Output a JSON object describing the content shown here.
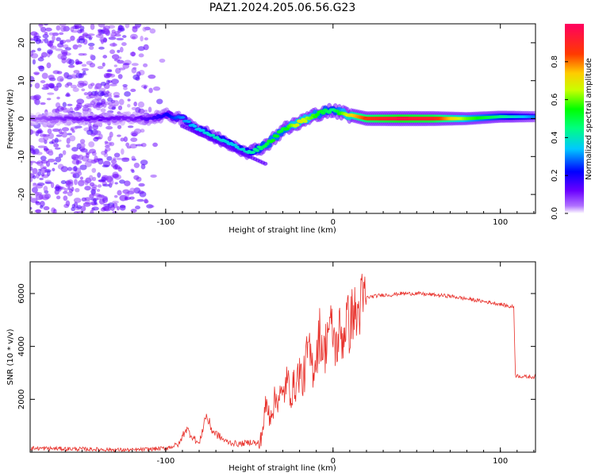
{
  "title": "PAZ1.2024.205.06.56.G23",
  "colors": {
    "signal": "#e8302a",
    "axis": "#000000"
  },
  "chart_data": [
    {
      "type": "heatmap",
      "xlabel": "Height of straight line (km)",
      "ylabel": "Frequency (Hz)",
      "xlim": [
        -181,
        121
      ],
      "ylim": [
        -25,
        25
      ],
      "x_ticks": [
        -100,
        0,
        100
      ],
      "x_tick_labels": [
        "-100",
        "0",
        "100"
      ],
      "y_ticks": [
        -20,
        -10,
        0,
        10,
        20
      ],
      "y_tick_labels": [
        "-20",
        "-10",
        "0",
        "10",
        "20"
      ],
      "colorbar": {
        "label": "Normalized spectral amplitude",
        "range": [
          0,
          1
        ],
        "ticks": [
          0,
          0.2,
          0.4,
          0.6,
          0.8
        ],
        "tick_labels": [
          "0.0",
          "0.2",
          "0.4",
          "0.6",
          "0.8"
        ],
        "colormap": [
          "#ffffff",
          "#7a00ff",
          "#0000ff",
          "#00e5ff",
          "#00ff00",
          "#ffff00",
          "#ff7f00",
          "#ff0000",
          "#ff1493"
        ]
      },
      "ridge": {
        "x": [
          -180,
          -160,
          -140,
          -120,
          -110,
          -100,
          -90,
          -80,
          -70,
          -60,
          -50,
          -45,
          -40,
          -35,
          -30,
          -20,
          -10,
          -5,
          0,
          10,
          20,
          40,
          60,
          80,
          100,
          120
        ],
        "frequency": [
          0,
          0,
          0,
          0,
          0,
          1,
          0,
          -3,
          -5,
          -7,
          -9,
          -8,
          -7,
          -5,
          -3,
          -1,
          1,
          2,
          2,
          1,
          0,
          0,
          0,
          0,
          0.5,
          0.5
        ],
        "amplitude": [
          0.05,
          0.1,
          0.12,
          0.1,
          0.15,
          0.2,
          0.3,
          0.35,
          0.4,
          0.35,
          0.4,
          0.45,
          0.5,
          0.55,
          0.5,
          0.7,
          0.55,
          0.5,
          0.45,
          0.7,
          0.85,
          0.95,
          0.9,
          0.6,
          0.45,
          0.3
        ]
      },
      "scatter_extent_x": [
        -181,
        -100
      ]
    },
    {
      "type": "line",
      "xlabel": "Height of straight line (km)",
      "ylabel": "SNR (10 * v/v)",
      "xlim": [
        -181,
        121
      ],
      "ylim": [
        0,
        7200
      ],
      "x_ticks": [
        -100,
        0,
        100
      ],
      "x_tick_labels": [
        "-100",
        "0",
        "100"
      ],
      "y_ticks": [
        2000,
        4000,
        6000
      ],
      "y_tick_labels": [
        "2000",
        "4000",
        "6000"
      ],
      "series": [
        {
          "x": [
            -181,
            -150,
            -120,
            -100,
            -92,
            -88,
            -84,
            -80,
            -76,
            -72,
            -68,
            -64,
            -60,
            -56,
            -52,
            -48,
            -44,
            -42,
            -40,
            -38,
            -35,
            -32,
            -30,
            -28,
            -25,
            -22,
            -20,
            -18,
            -15,
            -12,
            -10,
            -8,
            -5,
            -3,
            0,
            2,
            4,
            6,
            8,
            10,
            12,
            14,
            16,
            18,
            20,
            25,
            30,
            35,
            40,
            50,
            60,
            70,
            80,
            90,
            100,
            106,
            108,
            109,
            115,
            121
          ],
          "y": [
            150,
            120,
            80,
            150,
            300,
            900,
            600,
            300,
            1400,
            800,
            600,
            400,
            350,
            300,
            350,
            400,
            250,
            900,
            1800,
            1400,
            1900,
            2200,
            2000,
            2700,
            2300,
            2600,
            3100,
            2600,
            3900,
            3200,
            3600,
            4500,
            3700,
            4800,
            4500,
            3900,
            4600,
            4300,
            5100,
            4700,
            5400,
            5000,
            5500,
            5700,
            5850,
            5900,
            5950,
            5950,
            6000,
            6000,
            5950,
            5900,
            5800,
            5700,
            5600,
            5500,
            5500,
            2900,
            2850,
            2850
          ]
        }
      ]
    }
  ]
}
